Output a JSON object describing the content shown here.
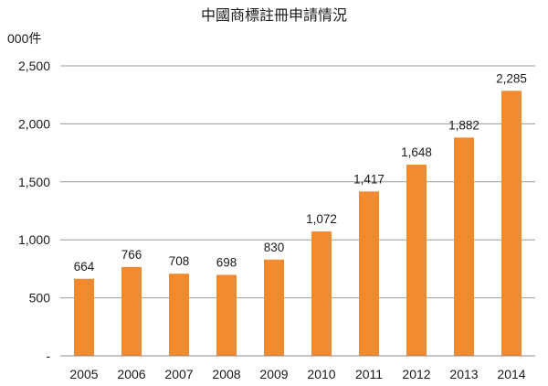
{
  "chart_data": {
    "type": "bar",
    "title": "中國商標註冊申請情況",
    "unit_label": "000件",
    "categories": [
      "2005",
      "2006",
      "2007",
      "2008",
      "2009",
      "2010",
      "2011",
      "2012",
      "2013",
      "2014"
    ],
    "values": [
      664,
      766,
      708,
      698,
      830,
      1072,
      1417,
      1648,
      1882,
      2285
    ],
    "data_labels": [
      "664",
      "766",
      "708",
      "698",
      "830",
      "1,072",
      "1,417",
      "1,648",
      "1,882",
      "2,285"
    ],
    "ylim": [
      0,
      2500
    ],
    "yticks": [
      0,
      500,
      1000,
      1500,
      2000,
      2500
    ],
    "ytick_labels": [
      "-",
      "500",
      "1,000",
      "1,500",
      "2,000",
      "2,500"
    ],
    "grid": true,
    "legend": "none",
    "bar_color": "#F28A30"
  }
}
